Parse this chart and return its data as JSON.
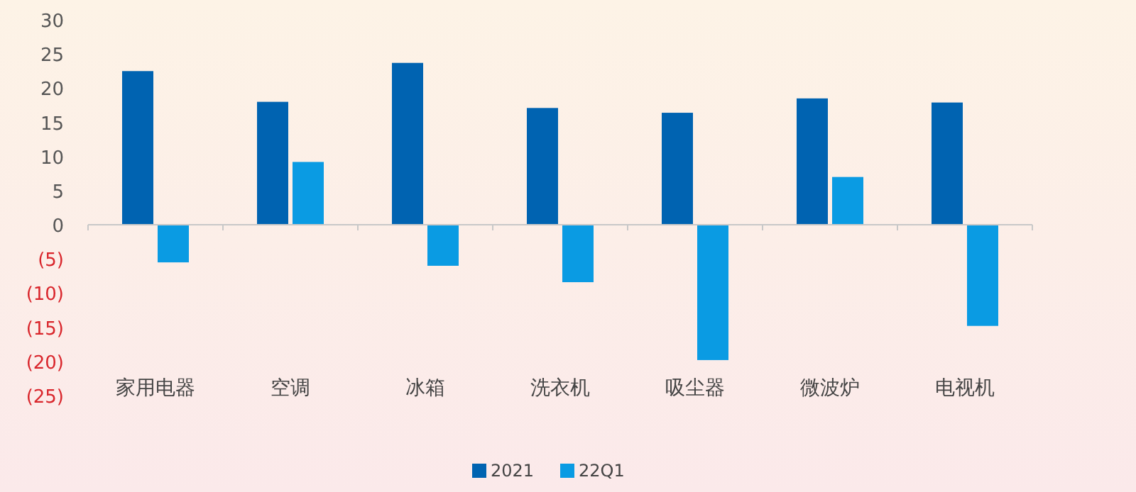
{
  "chart_data": {
    "type": "bar",
    "categories": [
      "家用电器",
      "空调",
      "冰箱",
      "洗衣机",
      "吸尘器",
      "微波炉",
      "电视机"
    ],
    "series": [
      {
        "name": "2021",
        "color": "#0063b1",
        "values": [
          22.5,
          18,
          23.7,
          17.1,
          16.4,
          18.5,
          17.9
        ]
      },
      {
        "name": "22Q1",
        "color": "#0a9be3",
        "values": [
          -5.5,
          9.2,
          -6,
          -8.4,
          -19.8,
          7,
          -14.8
        ]
      }
    ],
    "ylim": [
      -25,
      30
    ],
    "yticks": [
      30,
      25,
      20,
      15,
      10,
      5,
      0,
      {
        "value": -5,
        "label": "(5)"
      },
      {
        "value": -10,
        "label": "(10)"
      },
      {
        "value": -15,
        "label": "(15)"
      },
      {
        "value": -20,
        "label": "(20)"
      },
      {
        "value": -25,
        "label": "(25)"
      }
    ],
    "legend": "bottom"
  }
}
